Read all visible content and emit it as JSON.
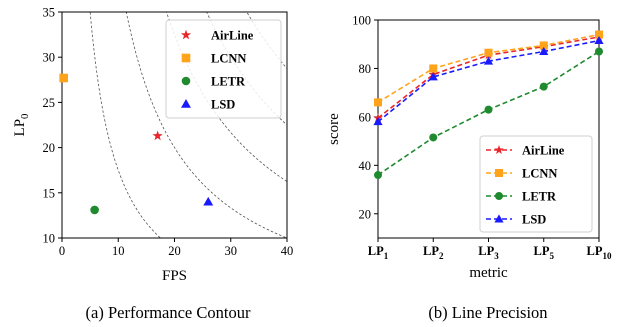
{
  "chart_data": [
    {
      "type": "scatter",
      "xlabel": "FPS",
      "ylabel": "LP",
      "ylabel_sub": "0",
      "xlim": [
        0,
        40
      ],
      "ylim": [
        10,
        35
      ],
      "xticks": [
        "0",
        "10",
        "20",
        "30",
        "40"
      ],
      "yticks": [
        "10",
        "15",
        "20",
        "25",
        "30",
        "35"
      ],
      "grid": false,
      "legend_position": "top-right",
      "contour_levels": [
        175,
        400,
        650,
        900,
        1150
      ],
      "series": [
        {
          "name": "AirLine",
          "marker": "star",
          "color": "#e8262b",
          "x": 17,
          "y": 21.3
        },
        {
          "name": "LCNN",
          "marker": "square",
          "color": "#ffa31a",
          "x": 0.3,
          "y": 27.7
        },
        {
          "name": "LETR",
          "marker": "circle",
          "color": "#1f8a2e",
          "x": 5.8,
          "y": 13.1
        },
        {
          "name": "LSD",
          "marker": "triangle",
          "color": "#1a1aff",
          "x": 26,
          "y": 14
        }
      ],
      "caption": "(a) Performance Contour"
    },
    {
      "type": "line",
      "xlabel": "metric",
      "ylabel": "score",
      "categories": [
        "LP1",
        "LP2",
        "LP3",
        "LP5",
        "LP10"
      ],
      "category_labels": [
        {
          "base": "LP",
          "sub": "1"
        },
        {
          "base": "LP",
          "sub": "2"
        },
        {
          "base": "LP",
          "sub": "3"
        },
        {
          "base": "LP",
          "sub": "5"
        },
        {
          "base": "LP",
          "sub": "10"
        }
      ],
      "ylim": [
        10,
        100
      ],
      "yticks": [
        "20",
        "40",
        "60",
        "80",
        "100"
      ],
      "grid": false,
      "legend_position": "bottom-right",
      "series": [
        {
          "name": "AirLine",
          "marker": "star",
          "color": "#e8262b",
          "values": [
            59.5,
            77.5,
            85.5,
            89.0,
            93.0
          ]
        },
        {
          "name": "LCNN",
          "marker": "square",
          "color": "#ffa31a",
          "values": [
            66.0,
            80.0,
            86.5,
            89.5,
            94.0
          ]
        },
        {
          "name": "LETR",
          "marker": "circle",
          "color": "#1f8a2e",
          "values": [
            36.0,
            51.5,
            63.0,
            72.5,
            87.0
          ]
        },
        {
          "name": "LSD",
          "marker": "triangle",
          "color": "#1a1aff",
          "values": [
            58.0,
            76.5,
            83.0,
            87.0,
            91.5
          ]
        }
      ],
      "caption": "(b) Line Precision"
    }
  ]
}
